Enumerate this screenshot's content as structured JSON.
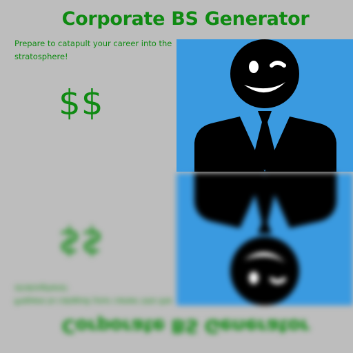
{
  "app": {
    "title": "Corporate BS Generator",
    "tagline": "Prepare to catapult your career into the stratosphere!",
    "money_symbols": "$$"
  },
  "illustration": {
    "subject": "winking businessman",
    "background_color": "#3a9ae0",
    "figure_color": "#000000",
    "icons": [
      "winking-face-icon",
      "suit-icon",
      "tie-icon"
    ]
  },
  "colors": {
    "text_green": "#0f8a12",
    "page_background": "#bdbdbd"
  }
}
